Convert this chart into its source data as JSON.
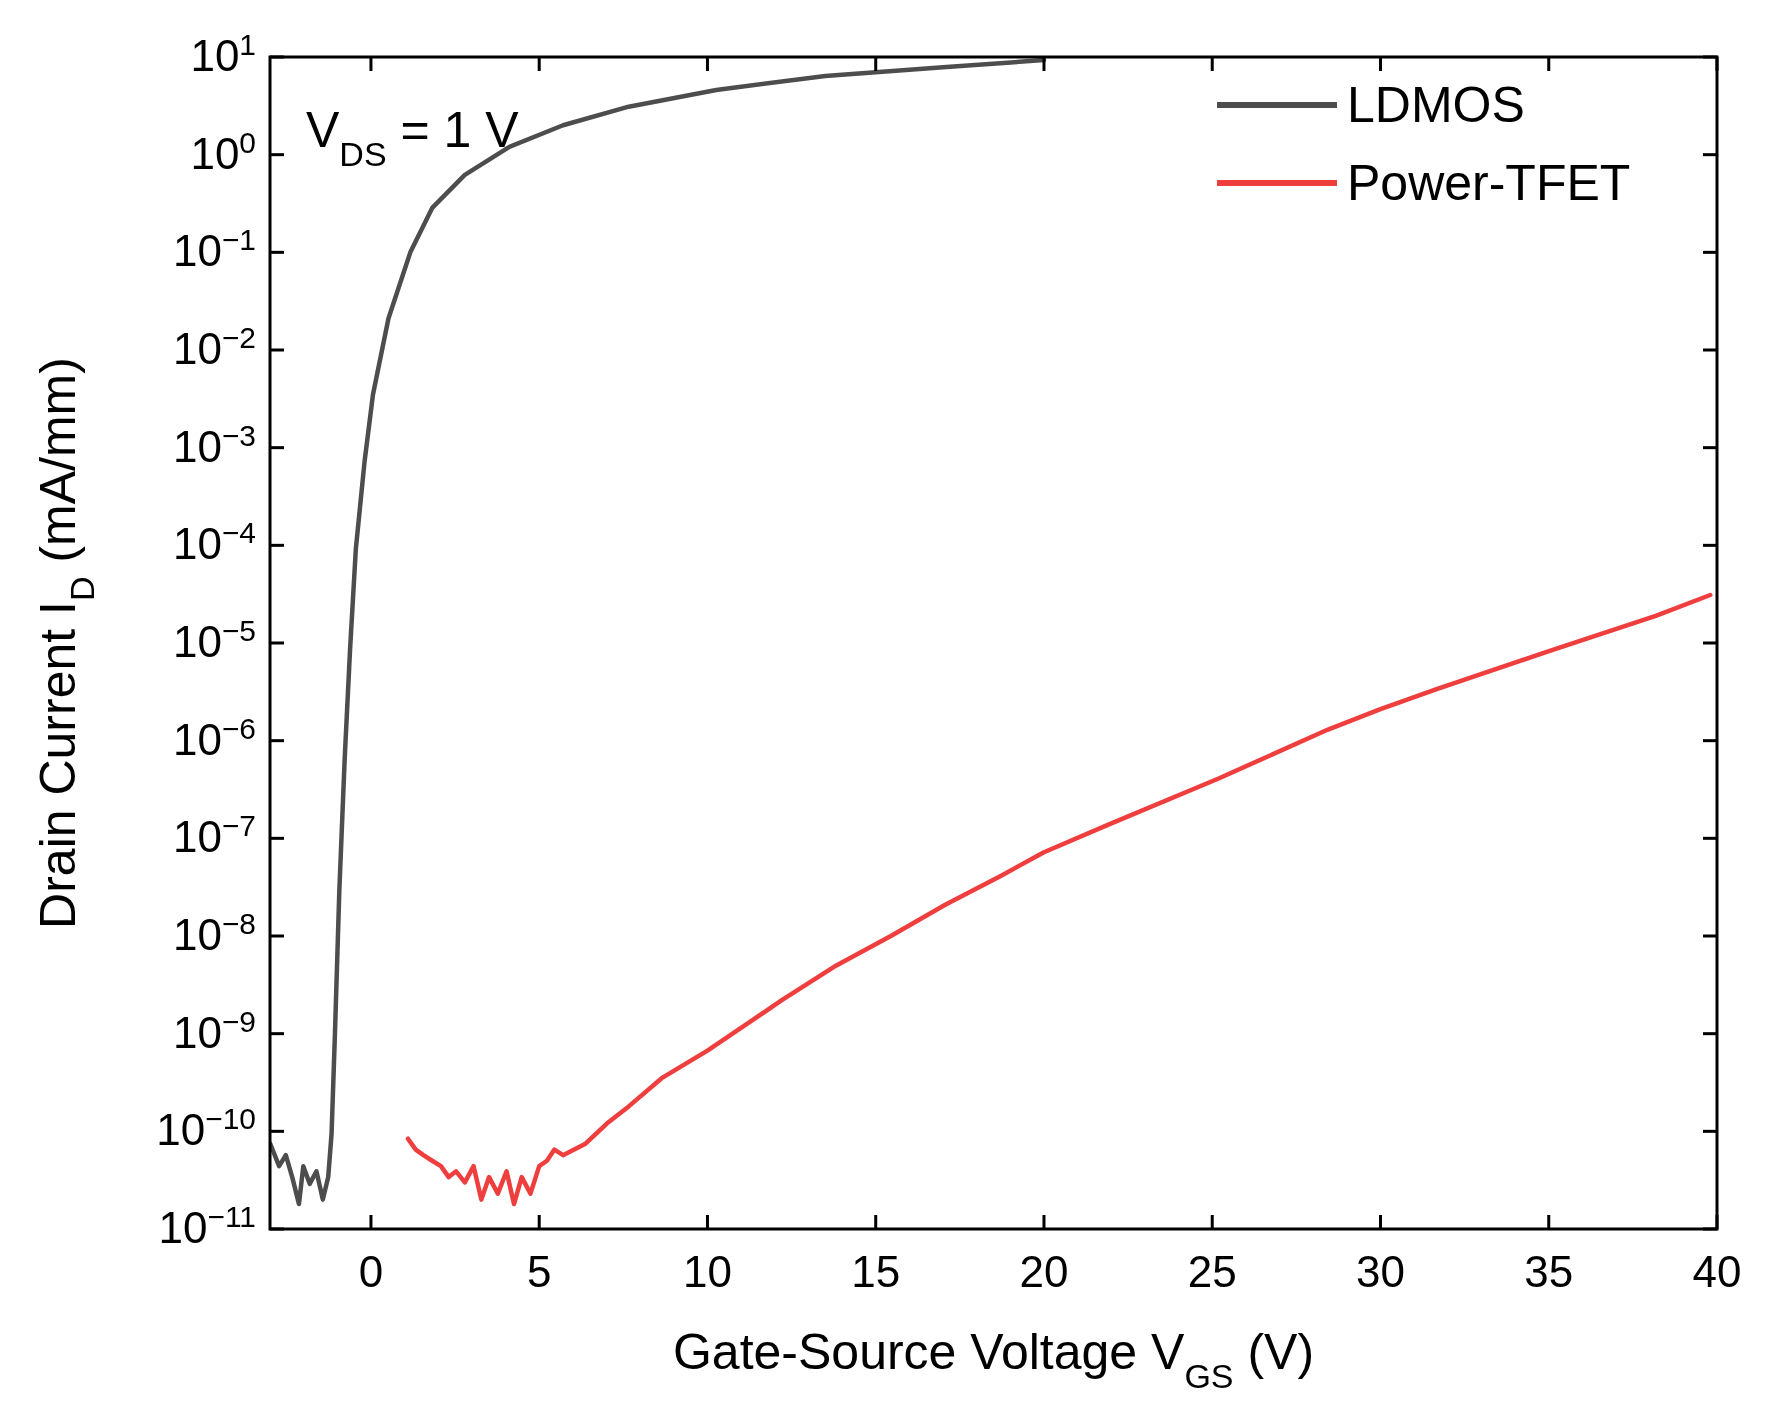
{
  "chart_data": {
    "type": "line",
    "xlabel": "Gate-Source Voltage V$_{GS}$ (V)",
    "ylabel": "Drain Current I$_{D}$ (mA/mm)",
    "annotations": [
      "V$_{DS}$ = 1 V"
    ],
    "log": "y",
    "legend": "top right",
    "grid": false,
    "marker": "none",
    "line_style": "solid",
    "xlim": [
      -3,
      40
    ],
    "xticks": [
      0,
      5,
      10,
      15,
      20,
      25,
      30,
      35,
      40
    ],
    "ylim": [
      1e-11,
      10
    ],
    "yticks": [
      {
        "value": 1e-11,
        "label": "10$^{−11}$"
      },
      {
        "value": 1e-10,
        "label": "10$^{−10}$"
      },
      {
        "value": 1e-09,
        "label": "10$^{−9}$"
      },
      {
        "value": 1e-08,
        "label": "10$^{−8}$"
      },
      {
        "value": 1e-07,
        "label": "10$^{−7}$"
      },
      {
        "value": 1e-06,
        "label": "10$^{−6}$"
      },
      {
        "value": 1e-05,
        "label": "10$^{−5}$"
      },
      {
        "value": 0.0001,
        "label": "10$^{−4}$"
      },
      {
        "value": 0.001,
        "label": "10$^{−3}$"
      },
      {
        "value": 0.01,
        "label": "10$^{−2}$"
      },
      {
        "value": 0.1,
        "label": "10$^{−1}$"
      },
      {
        "value": 1,
        "label": "10$^{0}$"
      },
      {
        "value": 10,
        "label": "10$^{1}$"
      }
    ],
    "series": [
      {
        "name": "LDMOS",
        "color": "#4d4d4d",
        "x": [
          -2.99,
          -2.73,
          -2.53,
          -2.34,
          -2.14,
          -2.01,
          -1.82,
          -1.62,
          -1.43,
          -1.27,
          -1.17,
          -1.07,
          -0.94,
          -0.78,
          -0.62,
          -0.45,
          -0.19,
          0.06,
          0.52,
          1.17,
          1.82,
          2.79,
          4.09,
          5.71,
          7.66,
          10.26,
          13.5,
          17.1,
          20.0
        ],
        "values": [
          7.4e-11,
          4.4e-11,
          5.7e-11,
          3.4e-11,
          1.8e-11,
          4.4e-11,
          2.9e-11,
          3.9e-11,
          2e-11,
          3.4e-11,
          9.5e-11,
          1e-09,
          2.9e-08,
          6.6e-07,
          8.7e-06,
          9.1e-05,
          0.00072,
          0.0035,
          0.021,
          0.1,
          0.285,
          0.62,
          1.19,
          2.0,
          3.1,
          4.6,
          6.4,
          7.9,
          9.3
        ]
      },
      {
        "name": "Power-TFET",
        "color": "#ee3e3e",
        "x": [
          1.1,
          1.33,
          1.56,
          1.82,
          2.08,
          2.31,
          2.53,
          2.79,
          3.05,
          3.28,
          3.51,
          3.77,
          4.03,
          4.25,
          4.48,
          4.74,
          5.0,
          5.23,
          5.45,
          5.71,
          6.04,
          6.36,
          7.01,
          7.66,
          8.64,
          10.0,
          12.21,
          13.83,
          15.45,
          17.08,
          18.7,
          20.0,
          21.95,
          25.19,
          28.44,
          30.0,
          31.69,
          34.94,
          38.18,
          39.8
        ],
        "values": [
          8.4e-11,
          6.5e-11,
          5.7e-11,
          5e-11,
          4.4e-11,
          3.4e-11,
          3.9e-11,
          3e-11,
          4.4e-11,
          2e-11,
          3.4e-11,
          2.3e-11,
          3.9e-11,
          1.8e-11,
          3.4e-11,
          2.3e-11,
          4.4e-11,
          5e-11,
          6.5e-11,
          5.7e-11,
          6.5e-11,
          7.4e-11,
          1.2e-10,
          1.8e-10,
          3.5e-10,
          6.7e-10,
          2.2e-09,
          5e-09,
          1e-08,
          2.1e-08,
          4.1e-08,
          7.2e-08,
          1.4e-07,
          4.1e-07,
          1.3e-06,
          2.1e-06,
          3.4e-06,
          8.1e-06,
          1.9e-05,
          3.1e-05
        ]
      }
    ]
  }
}
